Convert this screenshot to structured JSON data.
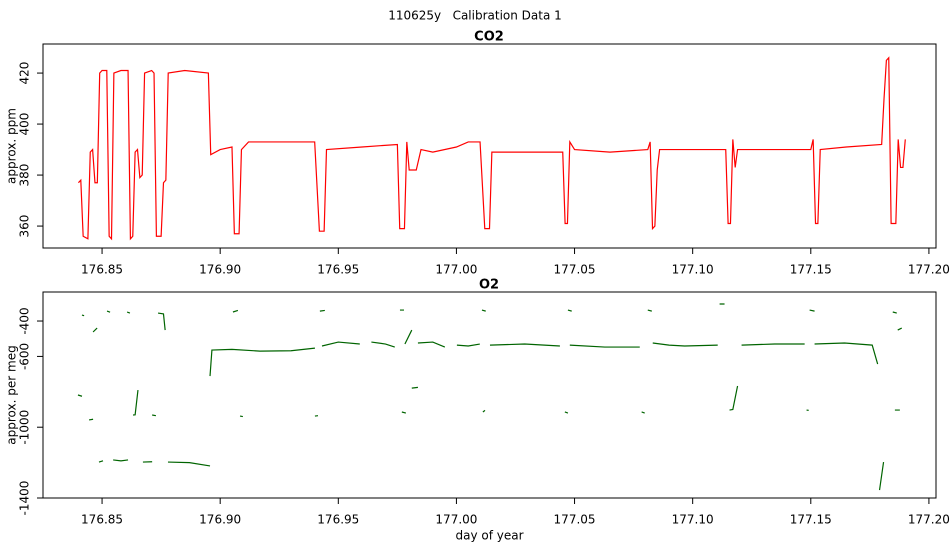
{
  "title": "110625y   Calibration Data 1",
  "chart_data": [
    {
      "type": "line",
      "title": "CO2",
      "y_label": "approx. ppm",
      "color": "#ff0000",
      "xlim": [
        176.825,
        177.203
      ],
      "ylim": [
        351.4,
        431.4
      ],
      "xticks": [
        176.85,
        {
          "value": 176.9,
          "label": "176.90"
        },
        176.95,
        {
          "value": 177,
          "label": "177.00"
        },
        177.05,
        {
          "value": 177.1,
          "label": "177.10"
        },
        177.15,
        {
          "value": 177.2,
          "label": "177.20"
        }
      ],
      "yticks": [
        360,
        380,
        400,
        420
      ],
      "x": [
        176.84,
        176.841,
        176.842,
        176.844,
        176.845,
        176.846,
        176.847,
        176.848,
        176.849,
        176.85,
        176.852,
        176.853,
        176.854,
        176.855,
        176.858,
        176.861,
        176.862,
        176.863,
        176.864,
        176.865,
        176.866,
        176.867,
        176.868,
        176.871,
        176.872,
        176.873,
        176.875,
        176.876,
        176.877,
        176.878,
        176.885,
        176.895,
        176.896,
        176.9,
        176.905,
        176.906,
        176.908,
        176.909,
        176.912,
        176.925,
        176.94,
        176.942,
        176.944,
        176.945,
        176.96,
        176.975,
        176.976,
        176.978,
        176.979,
        176.98,
        176.983,
        176.985,
        176.99,
        177.0,
        177.005,
        177.01,
        177.012,
        177.014,
        177.015,
        177.03,
        177.045,
        177.046,
        177.047,
        177.048,
        177.05,
        177.065,
        177.081,
        177.082,
        177.083,
        177.084,
        177.085,
        177.086,
        177.1,
        177.114,
        177.115,
        177.116,
        177.117,
        177.118,
        177.119,
        177.135,
        177.15,
        177.151,
        177.152,
        177.153,
        177.154,
        177.165,
        177.18,
        177.181,
        177.182,
        177.183,
        177.184,
        177.186,
        177.187,
        177.188,
        177.189,
        177.19
      ],
      "values": [
        377,
        378,
        356,
        355,
        389,
        390,
        377,
        377,
        420,
        421,
        421,
        356,
        355,
        420,
        421,
        421,
        355,
        356,
        389,
        390,
        379,
        380,
        420,
        421,
        420,
        356,
        356,
        377,
        378,
        420,
        421,
        420,
        388,
        390,
        391,
        357,
        357,
        390,
        393,
        393,
        393,
        358,
        358,
        390,
        391,
        392,
        359,
        359,
        393,
        382,
        382,
        390,
        389,
        391,
        393,
        393,
        359,
        359,
        389,
        389,
        389,
        361,
        361,
        393,
        390,
        389,
        390,
        393,
        359,
        360,
        382,
        390,
        390,
        390,
        361,
        361,
        394,
        383,
        390,
        390,
        390,
        394,
        361,
        361,
        390,
        391,
        392,
        410,
        425,
        426,
        361,
        361,
        394,
        383,
        383,
        394
      ]
    },
    {
      "type": "line",
      "title": "O2",
      "y_label": "approx. per meg",
      "x_label": "day of year",
      "color": "#006400",
      "xlim": [
        176.825,
        177.203
      ],
      "ylim": [
        -1400,
        -236
      ],
      "xticks": [
        176.85,
        {
          "value": 176.9,
          "label": "176.90"
        },
        176.95,
        {
          "value": 177,
          "label": "177.00"
        },
        177.05,
        {
          "value": 177.1,
          "label": "177.10"
        },
        177.15,
        {
          "value": 177.2,
          "label": "177.20"
        }
      ],
      "yticks": [
        -400,
        -600,
        -1000,
        -1400
      ],
      "x": [
        176.8398,
        176.8415,
        null,
        176.8415,
        176.8424,
        null,
        176.8445,
        176.8462,
        null,
        176.8462,
        176.8479,
        null,
        176.8487,
        176.8504,
        null,
        176.8521,
        176.8534,
        null,
        176.8547,
        176.858,
        176.861,
        null,
        176.8606,
        176.8618,
        null,
        176.8631,
        176.864,
        176.8652,
        null,
        176.8673,
        176.8712,
        null,
        176.8712,
        176.8728,
        null,
        176.8737,
        176.876,
        176.8767,
        null,
        176.8779,
        176.887,
        176.8957,
        null,
        176.8957,
        176.8965,
        176.905,
        176.9168,
        176.93,
        176.9401,
        null,
        176.9054,
        176.9075,
        null,
        176.9084,
        176.9096,
        null,
        176.9401,
        176.9414,
        null,
        176.9422,
        176.9443,
        null,
        176.9431,
        176.95,
        176.9591,
        null,
        176.964,
        176.97,
        176.9739,
        null,
        176.9761,
        176.9778,
        null,
        176.9769,
        176.9786,
        null,
        176.9782,
        176.9811,
        null,
        176.9811,
        176.9837,
        null,
        176.9837,
        176.99,
        176.9951,
        null,
        177.0002,
        177.005,
        177.0099,
        null,
        177.0108,
        177.0124,
        null,
        177.0112,
        177.0121,
        null,
        177.0142,
        177.0289,
        177.0438,
        null,
        177.0459,
        177.0472,
        null,
        177.0472,
        177.0488,
        null,
        177.048,
        177.0628,
        177.0776,
        null,
        177.0784,
        177.0797,
        null,
        177.081,
        177.0827,
        null,
        177.0831,
        177.09,
        177.0966,
        177.1106,
        null,
        177.1114,
        177.1135,
        null,
        177.1156,
        177.117,
        177.119,
        null,
        177.1207,
        177.1347,
        177.1474,
        null,
        177.1482,
        177.1491,
        null,
        177.1495,
        177.1516,
        null,
        177.1516,
        177.1643,
        177.176,
        177.1783,
        null,
        177.1791,
        177.1808,
        null,
        177.1847,
        177.1864,
        null,
        177.1856,
        177.1877,
        null,
        177.1868,
        177.1885
      ],
      "values": [
        -818,
        -825,
        null,
        -366,
        -370,
        null,
        -959,
        -955,
        null,
        -462,
        -440,
        null,
        -1197,
        -1190,
        null,
        -344,
        -350,
        null,
        -1185,
        -1190,
        -1185,
        null,
        -349,
        -355,
        null,
        -931,
        -930,
        -790,
        null,
        -1197,
        -1195,
        null,
        -931,
        -935,
        null,
        -355,
        -360,
        -451,
        null,
        -1197,
        -1200,
        -1219,
        null,
        -711,
        -564,
        -560,
        -570,
        -568,
        -553,
        null,
        -349,
        -340,
        null,
        -937,
        -940,
        null,
        -937,
        -935,
        null,
        -344,
        -340,
        null,
        -541,
        -519,
        -530,
        null,
        -519,
        -530,
        -547,
        null,
        -338,
        -338,
        null,
        -914,
        -920,
        null,
        -530,
        -451,
        null,
        -779,
        -775,
        null,
        -524,
        -519,
        -547,
        null,
        -536,
        -541,
        -530,
        null,
        -338,
        -344,
        null,
        -914,
        -905,
        null,
        -536,
        -530,
        -541,
        null,
        -914,
        -920,
        null,
        -338,
        -344,
        null,
        -536,
        -547,
        -547,
        null,
        -914,
        -920,
        null,
        -338,
        -344,
        null,
        -524,
        -536,
        -541,
        -536,
        null,
        -304,
        -304,
        null,
        -903,
        -900,
        -767,
        null,
        -536,
        -530,
        -530,
        null,
        -903,
        -905,
        null,
        -338,
        -344,
        null,
        -530,
        -524,
        -536,
        -643,
        null,
        -1355,
        -1197,
        null,
        -349,
        -355,
        null,
        -903,
        -903,
        null,
        -451,
        -440
      ]
    }
  ]
}
